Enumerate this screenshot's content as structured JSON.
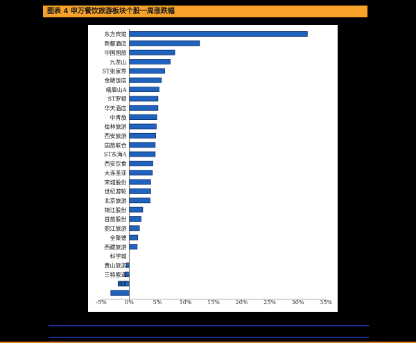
{
  "header": {
    "title": "图表 4 申万餐饮旅游板块个股一周涨跌幅"
  },
  "colors": {
    "title_bg": "#f7a12a",
    "bar_fill": "#1f63bf",
    "bar_stroke": "#0b2a66",
    "rule": "#1f2f8f",
    "bottom_rule": "#d9892b"
  },
  "chart_data": {
    "type": "bar",
    "orientation": "horizontal",
    "title": "",
    "xlabel": "",
    "ylabel": "",
    "xlim": [
      -5,
      35
    ],
    "x_ticks": [
      -5,
      0,
      5,
      10,
      15,
      20,
      25,
      30,
      35
    ],
    "x_tick_labels": [
      "-5%",
      "0%",
      "5%",
      "10%",
      "15%",
      "20%",
      "25%",
      "30%",
      "35%"
    ],
    "grid": false,
    "categories": [
      "东方宾馆",
      "新都酒店",
      "中国国旅",
      "九龙山",
      "ST张家界",
      "金陵饭店",
      "峨眉山A",
      "ST罗顿",
      "华天酒店",
      "中青旅",
      "桂林旅游",
      "西安旅游",
      "国旅联合",
      "ST东海A",
      "西安饮食",
      "大连圣亚",
      "宋城股份",
      "世纪游轮",
      "北京旅游",
      "锦江股份",
      "首旅股份",
      "丽江旅游",
      "全聚德",
      "西藏旅游",
      "科学城",
      "黄山旅游",
      "三特索道",
      "ST",
      ""
    ],
    "values": [
      31.7,
      12.5,
      8.1,
      7.3,
      6.3,
      5.7,
      5.3,
      5.1,
      5.1,
      4.9,
      4.8,
      4.7,
      4.6,
      4.6,
      4.2,
      4.1,
      3.8,
      3.8,
      3.7,
      2.4,
      2.1,
      1.8,
      1.5,
      1.4,
      0.0,
      -0.5,
      -0.8,
      -2.0,
      -3.3
    ]
  }
}
